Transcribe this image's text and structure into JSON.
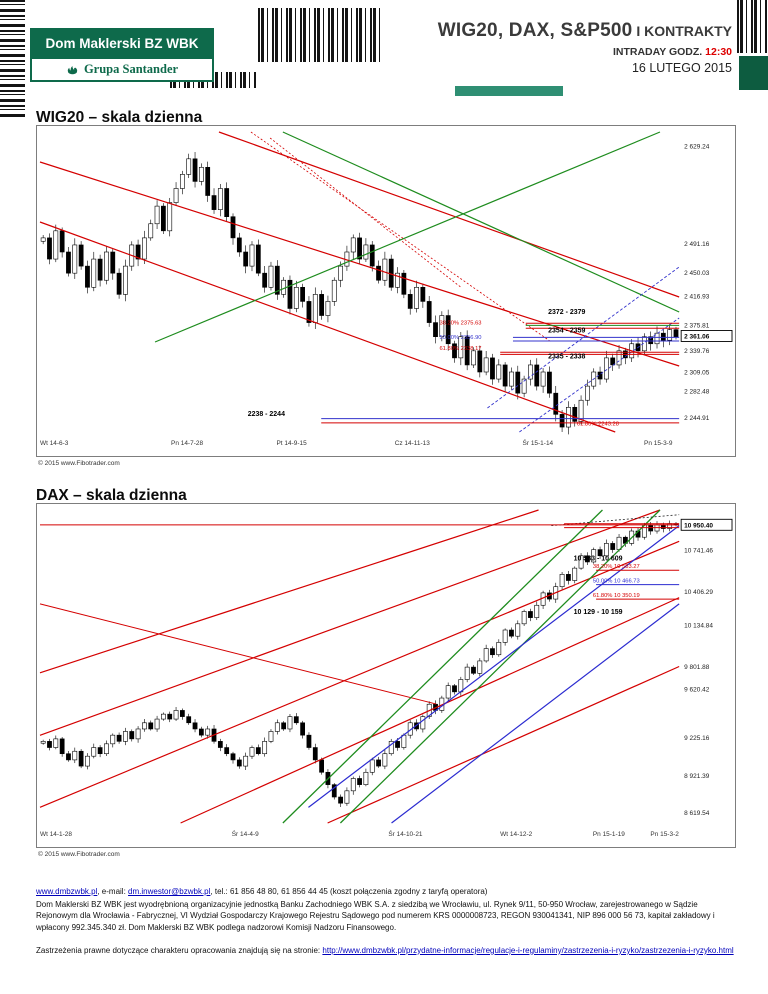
{
  "header": {
    "logo_line1": "Dom Maklerski BZ WBK",
    "logo_line2": "Grupa Santander",
    "title_main": "WIG20, DAX, S&P500",
    "title_suffix": " I KONTRAKTY",
    "subtitle_label": "INTRADAY GODZ. ",
    "subtitle_time": "12:30",
    "date": "16 LUTEGO 2015"
  },
  "wig20": {
    "heading": "WIG20 – skala dzienna",
    "copyright": "© 2015 www.Fibotrader.com",
    "chart_data": {
      "type": "candlestick",
      "title": "WIG20 – skala dzienna",
      "ylim": [
        2225,
        2650
      ],
      "spread": 16,
      "closes": [
        2500,
        2470,
        2510,
        2480,
        2450,
        2490,
        2460,
        2430,
        2470,
        2440,
        2480,
        2450,
        2420,
        2460,
        2490,
        2470,
        2500,
        2520,
        2545,
        2510,
        2550,
        2570,
        2590,
        2612,
        2580,
        2600,
        2560,
        2540,
        2570,
        2530,
        2500,
        2480,
        2460,
        2490,
        2450,
        2430,
        2460,
        2420,
        2440,
        2400,
        2430,
        2410,
        2380,
        2420,
        2390,
        2410,
        2440,
        2460,
        2480,
        2500,
        2470,
        2490,
        2460,
        2440,
        2470,
        2430,
        2450,
        2420,
        2400,
        2430,
        2410,
        2380,
        2360,
        2390,
        2350,
        2330,
        2360,
        2320,
        2340,
        2310,
        2330,
        2300,
        2320,
        2290,
        2310,
        2280,
        2300,
        2320,
        2290,
        2310,
        2280,
        2250,
        2232,
        2260,
        2240,
        2270,
        2290,
        2310,
        2300,
        2330,
        2320,
        2340,
        2330,
        2350,
        2340,
        2360,
        2350,
        2365,
        2355,
        2370,
        2360
      ],
      "x_labels": [
        {
          "t": "Wt 14-6-3",
          "f": 0.0
        },
        {
          "t": "Pn 14-7-28",
          "f": 0.205
        },
        {
          "t": "Pt 14-9-15",
          "f": 0.37
        },
        {
          "t": "Cz 14-11-13",
          "f": 0.555
        },
        {
          "t": "Śr 15-1-14",
          "f": 0.755
        },
        {
          "t": "Pn 15-3-9",
          "f": 0.945
        }
      ],
      "y_labels": [
        {
          "t": "2 629.24",
          "v": 2629.24
        },
        {
          "t": "2 491.16",
          "v": 2491.16
        },
        {
          "t": "2 450.03",
          "v": 2450.03
        },
        {
          "t": "2 416.93",
          "v": 2416.93
        },
        {
          "t": "2 375.81",
          "v": 2375.81
        },
        {
          "t": "2 339.76",
          "v": 2339.76
        },
        {
          "t": "2 309.05",
          "v": 2309.05
        },
        {
          "t": "2 282.48",
          "v": 2282.48
        },
        {
          "t": "2 244.91",
          "v": 2244.91
        }
      ],
      "price_box": {
        "t": "2 361.06",
        "v": 2361.06
      },
      "lines": [
        {
          "x1": 0.0,
          "y1": 0.1,
          "x2": 1.0,
          "y2": 0.78,
          "c": "#d40000",
          "w": 1.2
        },
        {
          "x1": 0.0,
          "y1": 0.3,
          "x2": 0.9,
          "y2": 1.0,
          "c": "#d40000",
          "w": 1.2
        },
        {
          "x1": 0.28,
          "y1": 0.0,
          "x2": 1.0,
          "y2": 0.55,
          "c": "#d40000",
          "w": 1.2
        },
        {
          "x1": 0.33,
          "y1": 0.0,
          "x2": 0.8,
          "y2": 0.7,
          "c": "#d40000",
          "w": 0.8,
          "dash": "2,2"
        },
        {
          "x1": 0.36,
          "y1": 0.02,
          "x2": 0.66,
          "y2": 0.52,
          "c": "#d40000",
          "w": 0.8,
          "dash": "2,2"
        },
        {
          "x1": 0.38,
          "y1": 0.0,
          "x2": 1.0,
          "y2": 0.6,
          "c": "#1e8c1e",
          "w": 1.2
        },
        {
          "x1": 0.18,
          "y1": 0.7,
          "x2": 0.97,
          "y2": 0.0,
          "c": "#1e8c1e",
          "w": 1.2
        },
        {
          "x1": 0.7,
          "y1": 0.92,
          "x2": 1.0,
          "y2": 0.45,
          "c": "#3333cc",
          "w": 0.9,
          "dash": "3,2"
        },
        {
          "x1": 0.75,
          "y1": 1.0,
          "x2": 1.0,
          "y2": 0.62,
          "c": "#3333cc",
          "w": 0.9,
          "dash": "3,2"
        }
      ],
      "hlines": [
        {
          "v": 2379,
          "f1": 0.76,
          "f2": 1.0,
          "c": "#d40000"
        },
        {
          "v": 2376,
          "f1": 0.76,
          "f2": 1.0,
          "c": "#1e8c1e"
        },
        {
          "v": 2372,
          "f1": 0.76,
          "f2": 1.0,
          "c": "#d40000"
        },
        {
          "v": 2359,
          "f1": 0.74,
          "f2": 1.0,
          "c": "#3333cc"
        },
        {
          "v": 2354,
          "f1": 0.74,
          "f2": 1.0,
          "c": "#3333cc"
        },
        {
          "v": 2338,
          "f1": 0.72,
          "f2": 1.0,
          "c": "#d40000"
        },
        {
          "v": 2335,
          "f1": 0.72,
          "f2": 1.0,
          "c": "#d40000"
        },
        {
          "v": 2244,
          "f1": 0.44,
          "f2": 1.0,
          "c": "#3333cc"
        },
        {
          "v": 2238,
          "f1": 0.44,
          "f2": 1.0,
          "c": "#d40000"
        }
      ],
      "labels": [
        {
          "t": "2372 - 2379",
          "xf": 0.795,
          "v": 2392,
          "c": "#000000",
          "b": true
        },
        {
          "t": "38.20% 2375.63",
          "xf": 0.625,
          "v": 2377,
          "c": "#d40000"
        },
        {
          "t": "2354 - 2359",
          "xf": 0.795,
          "v": 2366,
          "c": "#000000",
          "b": true
        },
        {
          "t": "50.00% 2356.90",
          "xf": 0.625,
          "v": 2357,
          "c": "#3333cc"
        },
        {
          "t": "61.80% 2338.17",
          "xf": 0.625,
          "v": 2341,
          "c": "#d40000"
        },
        {
          "t": "2335 - 2338",
          "xf": 0.795,
          "v": 2329,
          "c": "#000000",
          "b": true
        },
        {
          "t": "2238 - 2244",
          "xf": 0.325,
          "v": 2248,
          "c": "#000000",
          "b": true
        },
        {
          "t": "61.80% 2243.28",
          "xf": 0.84,
          "v": 2234,
          "c": "#d40000"
        }
      ]
    }
  },
  "dax": {
    "heading": "DAX – skala dzienna",
    "copyright": "© 2015 www.Fibotrader.com",
    "chart_data": {
      "type": "candlestick",
      "title": "DAX – skala dzienna",
      "ylim": [
        8540,
        11070
      ],
      "spread": 50,
      "closes": [
        9200,
        9150,
        9220,
        9100,
        9050,
        9120,
        9000,
        9080,
        9150,
        9100,
        9180,
        9250,
        9200,
        9280,
        9220,
        9300,
        9350,
        9300,
        9380,
        9420,
        9380,
        9450,
        9400,
        9350,
        9300,
        9250,
        9300,
        9200,
        9150,
        9100,
        9050,
        9000,
        9080,
        9150,
        9100,
        9200,
        9280,
        9350,
        9300,
        9400,
        9350,
        9250,
        9150,
        9050,
        8950,
        8850,
        8750,
        8700,
        8800,
        8900,
        8850,
        8950,
        9050,
        9000,
        9100,
        9200,
        9150,
        9250,
        9350,
        9300,
        9400,
        9500,
        9450,
        9550,
        9650,
        9600,
        9700,
        9800,
        9750,
        9850,
        9950,
        9900,
        10000,
        10100,
        10050,
        10150,
        10250,
        10200,
        10300,
        10400,
        10350,
        10450,
        10550,
        10500,
        10600,
        10700,
        10650,
        10750,
        10700,
        10800,
        10750,
        10850,
        10800,
        10900,
        10850,
        10950,
        10900,
        10950,
        10920,
        10960,
        10950
      ],
      "x_labels": [
        {
          "t": "Wt 14-1-28",
          "f": 0.0
        },
        {
          "t": "Śr 14-4-9",
          "f": 0.3
        },
        {
          "t": "Śr 14-10-21",
          "f": 0.545
        },
        {
          "t": "Wt 14-12-2",
          "f": 0.72
        },
        {
          "t": "Pn 15-1-19",
          "f": 0.865
        },
        {
          "t": "Pn 15-3-2",
          "f": 0.955
        }
      ],
      "y_labels": [
        {
          "t": "10 741.46",
          "v": 10741.46
        },
        {
          "t": "10 406.29",
          "v": 10406.29
        },
        {
          "t": "10 134.84",
          "v": 10134.84
        },
        {
          "t": "9 801.88",
          "v": 9801.88
        },
        {
          "t": "9 620.42",
          "v": 9620.42
        },
        {
          "t": "9 225.16",
          "v": 9225.16
        },
        {
          "t": "8 921.39",
          "v": 8921.39
        },
        {
          "t": "8 619.54",
          "v": 8619.54
        }
      ],
      "price_box": {
        "t": "10 950.40",
        "v": 10950.4
      },
      "lines": [
        {
          "x1": 0.0,
          "y1": 0.52,
          "x2": 0.78,
          "y2": 0.0,
          "c": "#d40000",
          "w": 1.2
        },
        {
          "x1": 0.0,
          "y1": 0.72,
          "x2": 0.97,
          "y2": 0.0,
          "c": "#d40000",
          "w": 1.2
        },
        {
          "x1": 0.0,
          "y1": 0.95,
          "x2": 1.0,
          "y2": 0.1,
          "c": "#d40000",
          "w": 1.2
        },
        {
          "x1": 0.22,
          "y1": 1.0,
          "x2": 1.0,
          "y2": 0.28,
          "c": "#d40000",
          "w": 1.2
        },
        {
          "x1": 0.45,
          "y1": 1.0,
          "x2": 1.0,
          "y2": 0.5,
          "c": "#d40000",
          "w": 1.2
        },
        {
          "x1": 0.0,
          "y1": 0.3,
          "x2": 0.62,
          "y2": 0.62,
          "c": "#d40000",
          "w": 1.0
        },
        {
          "x1": 0.38,
          "y1": 1.0,
          "x2": 0.88,
          "y2": 0.0,
          "c": "#1e8c1e",
          "w": 1.3
        },
        {
          "x1": 0.47,
          "y1": 1.0,
          "x2": 0.97,
          "y2": 0.0,
          "c": "#1e8c1e",
          "w": 1.3
        },
        {
          "x1": 0.42,
          "y1": 0.95,
          "x2": 1.0,
          "y2": 0.05,
          "c": "#2b2bd0",
          "w": 1.2
        },
        {
          "x1": 0.55,
          "y1": 1.0,
          "x2": 1.0,
          "y2": 0.3,
          "c": "#2b2bd0",
          "w": 1.2
        },
        {
          "x1": 0.8,
          "y1": 0.05,
          "x2": 1.0,
          "y2": 0.015,
          "c": "#222222",
          "w": 0.8,
          "dash": "2,2"
        }
      ],
      "hlines": [
        {
          "v": 10950,
          "f1": 0.0,
          "f2": 1.0,
          "c": "#d40000"
        },
        {
          "v": 10959,
          "f1": 0.82,
          "f2": 1.0,
          "c": "#d40000"
        },
        {
          "v": 10928,
          "f1": 0.82,
          "f2": 1.0,
          "c": "#d40000"
        },
        {
          "v": 10583,
          "f1": 0.87,
          "f2": 1.0,
          "c": "#d40000"
        },
        {
          "v": 10467,
          "f1": 0.87,
          "f2": 1.0,
          "c": "#2b2bd0"
        },
        {
          "v": 10350,
          "f1": 0.87,
          "f2": 1.0,
          "c": "#d40000"
        }
      ],
      "labels": [
        {
          "t": "10 583 - 10 609",
          "xf": 0.835,
          "v": 10660,
          "c": "#000000",
          "b": true
        },
        {
          "t": "38.20% 10 583.27",
          "xf": 0.865,
          "v": 10600,
          "c": "#d40000"
        },
        {
          "t": "50.00% 10 466.73",
          "xf": 0.865,
          "v": 10482,
          "c": "#2b2bd0"
        },
        {
          "t": "61.80% 10 350.19",
          "xf": 0.865,
          "v": 10366,
          "c": "#d40000"
        },
        {
          "t": "10 129 - 10 159",
          "xf": 0.835,
          "v": 10230,
          "c": "#000000",
          "b": true
        }
      ]
    }
  },
  "footer": {
    "link_site": "www.dmbzwbk.pl",
    "line1_mid": ", e-mail: ",
    "link_email": "dm.inwestor@bzwbk.pl",
    "line1_rest": ", tel.: 61 856 48 80, 61 856 44 45 (koszt połączenia zgodny z taryfą operatora)",
    "paragraph": "Dom Maklerski BZ WBK jest wyodrębnioną organizacyjnie jednostką Banku Zachodniego WBK S.A. z siedzibą we Wrocławiu, ul. Rynek 9/11, 50-950 Wrocław, zarejestrowanego w Sądzie Rejonowym dla Wrocławia - Fabrycznej, VI Wydział Gospodarczy Krajowego Rejestru Sądowego pod numerem KRS 0000008723, REGON 930041341, NIP 896 000 56 73, kapitał zakładowy i wpłacony 992.345.340 zł. Dom Maklerski BZ WBK podlega nadzorowi Komisji Nadzoru Finansowego.",
    "disclaimer_prefix": "Zastrzeżenia prawne dotyczące charakteru opracowania znajdują się na stronie: ",
    "disclaimer_link": "http://www.dmbzwbk.pl/przydatne-informacje/regulacje-i-regulaminy/zastrzezenia-i-ryzyko/zastrzezenia-i-ryzyko.html"
  }
}
